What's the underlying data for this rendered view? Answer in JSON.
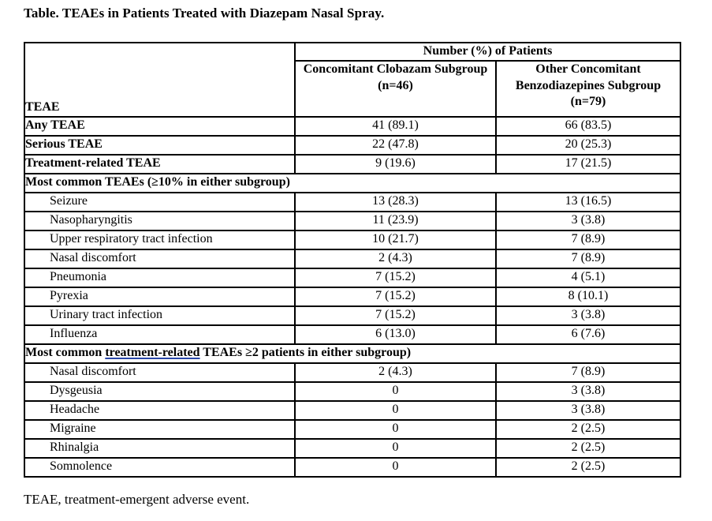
{
  "title": "Table. TEAEs in Patients Treated with Diazepam Nasal Spray.",
  "footnote": "TEAE, treatment-emergent adverse event.",
  "table": {
    "corner_label": "TEAE",
    "spanning_header": "Number (%) of Patients",
    "col_headers": [
      "Concomitant Clobazam Subgroup (n=46)",
      "Other Concomitant Benzodiazepines Subgroup (n=79)"
    ],
    "rows": [
      {
        "type": "data",
        "bold": true,
        "indent": false,
        "label": "Any TEAE",
        "clobazam": "41 (89.1)",
        "other": "66 (83.5)"
      },
      {
        "type": "data",
        "bold": true,
        "indent": false,
        "label": "Serious TEAE",
        "clobazam": "22 (47.8)",
        "other": "20 (25.3)"
      },
      {
        "type": "data",
        "bold": true,
        "indent": false,
        "label": "Treatment-related TEAE",
        "clobazam": "9 (19.6)",
        "other": "17 (21.5)"
      },
      {
        "type": "section",
        "segments": [
          {
            "text": "Most common TEAEs (≥10% in either subgroup)"
          }
        ]
      },
      {
        "type": "data",
        "bold": false,
        "indent": true,
        "label": "Seizure",
        "clobazam": "13 (28.3)",
        "other": "13 (16.5)"
      },
      {
        "type": "data",
        "bold": false,
        "indent": true,
        "label": "Nasopharyngitis",
        "clobazam": "11 (23.9)",
        "other": "3 (3.8)"
      },
      {
        "type": "data",
        "bold": false,
        "indent": true,
        "label": "Upper respiratory tract infection",
        "clobazam": "10 (21.7)",
        "other": "7 (8.9)"
      },
      {
        "type": "data",
        "bold": false,
        "indent": true,
        "label": "Nasal discomfort",
        "clobazam": "2 (4.3)",
        "other": "7 (8.9)"
      },
      {
        "type": "data",
        "bold": false,
        "indent": true,
        "label": "Pneumonia",
        "clobazam": "7 (15.2)",
        "other": "4 (5.1)"
      },
      {
        "type": "data",
        "bold": false,
        "indent": true,
        "label": "Pyrexia",
        "clobazam": "7 (15.2)",
        "other": "8 (10.1)"
      },
      {
        "type": "data",
        "bold": false,
        "indent": true,
        "label": "Urinary tract infection",
        "clobazam": "7 (15.2)",
        "other": "3 (3.8)"
      },
      {
        "type": "data",
        "bold": false,
        "indent": true,
        "label": "Influenza",
        "clobazam": "6 (13.0)",
        "other": "6 (7.6)"
      },
      {
        "type": "section",
        "segments": [
          {
            "text": "Most common "
          },
          {
            "text": "treatment-related",
            "underline": true
          },
          {
            "text": " TEAEs ≥2 patients in either subgroup)"
          }
        ]
      },
      {
        "type": "data",
        "bold": false,
        "indent": true,
        "label": "Nasal discomfort",
        "clobazam": "2 (4.3)",
        "other": "7 (8.9)"
      },
      {
        "type": "data",
        "bold": false,
        "indent": true,
        "label": "Dysgeusia",
        "clobazam": "0",
        "other": "3 (3.8)"
      },
      {
        "type": "data",
        "bold": false,
        "indent": true,
        "label": "Headache",
        "clobazam": "0",
        "other": "3 (3.8)"
      },
      {
        "type": "data",
        "bold": false,
        "indent": true,
        "label": "Migraine",
        "clobazam": "0",
        "other": "2 (2.5)"
      },
      {
        "type": "data",
        "bold": false,
        "indent": true,
        "label": "Rhinalgia",
        "clobazam": "0",
        "other": "2 (2.5)"
      },
      {
        "type": "data",
        "bold": false,
        "indent": true,
        "label": "Somnolence",
        "clobazam": "0",
        "other": "2 (2.5)"
      }
    ]
  }
}
